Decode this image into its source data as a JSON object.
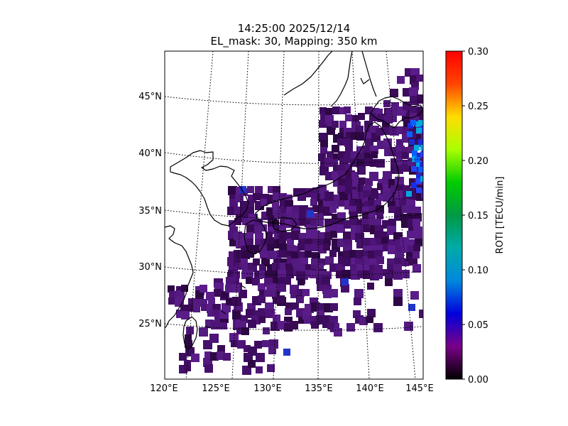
{
  "title": {
    "line1": "14:25:00 2025/12/14",
    "line2": "EL_mask: 30, Mapping: 350 km"
  },
  "map": {
    "lon_labels": [
      "120°E",
      "125°E",
      "130°E",
      "135°E",
      "140°E",
      "145°E"
    ],
    "lat_labels": [
      "25°N",
      "30°N",
      "35°N",
      "40°N",
      "45°N"
    ],
    "lon_range": [
      120,
      145
    ],
    "lat_range": [
      20,
      49
    ],
    "gridlines": "dotted",
    "coastline_color": "#000000"
  },
  "colorbar": {
    "label": "ROTI [TECU/min]",
    "ticks": [
      "0.00",
      "0.05",
      "0.10",
      "0.15",
      "0.20",
      "0.25",
      "0.30"
    ],
    "range": [
      0,
      0.3
    ],
    "colormap": "nipy_spectral",
    "placement": "right"
  },
  "chart_data": {
    "type": "heatmap",
    "value_label": "ROTI [TECU/min]",
    "vmin": 0,
    "vmax": 0.3,
    "typical_value": 0.04,
    "notes_visible": "Mostly dark purple cells (~0.03–0.06) over Japan and East China Sea; blue/cyan cells (~0.06–0.11) near 144–145°E, 36–44°N."
  }
}
